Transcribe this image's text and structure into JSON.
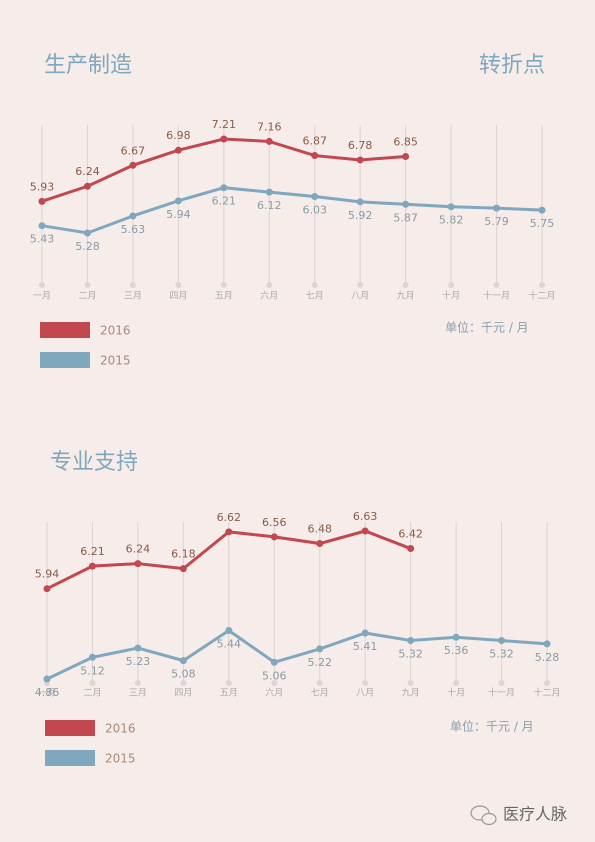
{
  "chart_data": [
    {
      "type": "line",
      "title": "生产制造",
      "annotation": "转折点",
      "unit": "单位：千元 / 月",
      "categories": [
        "一月",
        "二月",
        "三月",
        "四月",
        "五月",
        "六月",
        "七月",
        "八月",
        "九月",
        "十月",
        "十一月",
        "十二月"
      ],
      "series": [
        {
          "name": "2016",
          "color": "#c2474f",
          "values": [
            5.93,
            6.24,
            6.67,
            6.98,
            7.21,
            7.16,
            6.87,
            6.78,
            6.85,
            null,
            null,
            null
          ]
        },
        {
          "name": "2015",
          "color": "#7fa7bd",
          "values": [
            5.43,
            5.28,
            5.63,
            5.94,
            6.21,
            6.12,
            6.03,
            5.92,
            5.87,
            5.82,
            5.79,
            5.75
          ]
        }
      ]
    },
    {
      "type": "line",
      "title": "专业支持",
      "unit": "单位：千元 / 月",
      "categories": [
        "一月",
        "二月",
        "三月",
        "四月",
        "五月",
        "六月",
        "七月",
        "八月",
        "九月",
        "十月",
        "十一月",
        "十二月"
      ],
      "series": [
        {
          "name": "2016",
          "color": "#c2474f",
          "values": [
            5.94,
            6.21,
            6.24,
            6.18,
            6.62,
            6.56,
            6.48,
            6.63,
            6.42,
            null,
            null,
            null
          ]
        },
        {
          "name": "2015",
          "color": "#7fa7bd",
          "values": [
            4.86,
            5.12,
            5.23,
            5.08,
            5.44,
            5.06,
            5.22,
            5.41,
            5.32,
            5.36,
            5.32,
            5.28
          ]
        }
      ]
    }
  ],
  "watermark": "医疗人脉"
}
